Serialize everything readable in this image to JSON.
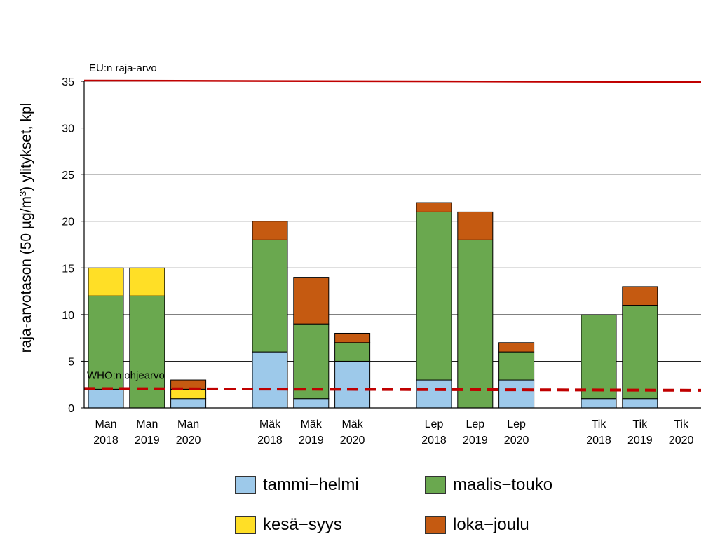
{
  "chart_data": {
    "type": "bar",
    "stacked": true,
    "ylabel_parts": [
      "raja-arvotason (50 µg/m",
      "3",
      ") ylitykset, kpl"
    ],
    "ylim": [
      0,
      35
    ],
    "yticks": [
      "0",
      "5",
      "10",
      "15",
      "20",
      "25",
      "30",
      "35"
    ],
    "grid": true,
    "categories": [
      {
        "line1": "Man",
        "line2": "2018"
      },
      {
        "line1": "Man",
        "line2": "2019"
      },
      {
        "line1": "Man",
        "line2": "2020"
      },
      {
        "line1": "Mäk",
        "line2": "2018"
      },
      {
        "line1": "Mäk",
        "line2": "2019"
      },
      {
        "line1": "Mäk",
        "line2": "2020"
      },
      {
        "line1": "Lep",
        "line2": "2018"
      },
      {
        "line1": "Lep",
        "line2": "2019"
      },
      {
        "line1": "Lep",
        "line2": "2020"
      },
      {
        "line1": "Tik",
        "line2": "2018"
      },
      {
        "line1": "Tik",
        "line2": "2019"
      },
      {
        "line1": "Tik",
        "line2": "2020"
      }
    ],
    "series": [
      {
        "name": "tammi−helmi",
        "color": "#9dc9ea",
        "values": [
          2,
          0,
          1,
          6,
          1,
          5,
          3,
          0,
          3,
          1,
          1,
          0
        ]
      },
      {
        "name": "maalis−touko",
        "color": "#6aa84f",
        "values": [
          10,
          12,
          0,
          12,
          8,
          2,
          18,
          18,
          3,
          9,
          10,
          0
        ]
      },
      {
        "name": "kesä−syys",
        "color": "#ffdf26",
        "values": [
          3,
          3,
          1,
          0,
          0,
          0,
          0,
          0,
          0,
          0,
          0,
          0
        ]
      },
      {
        "name": "loka−joulu",
        "color": "#c55a11",
        "values": [
          0,
          0,
          1,
          2,
          5,
          1,
          1,
          3,
          1,
          0,
          2,
          0
        ]
      }
    ],
    "reference_lines": [
      {
        "label": "EU:n raja-arvo",
        "value": 35,
        "color": "#c00000",
        "style": "solid"
      },
      {
        "label": "WHO:n ohjearvo",
        "value": 2,
        "color": "#c00000",
        "style": "dashed"
      }
    ],
    "legend_position": "bottom"
  }
}
